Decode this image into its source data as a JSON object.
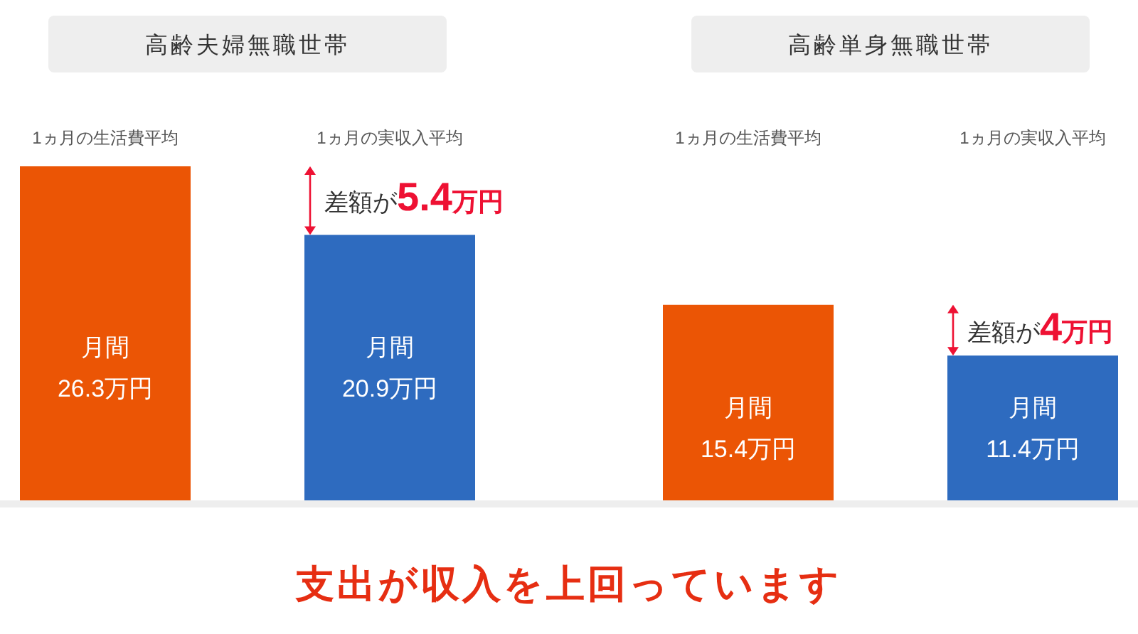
{
  "chart_data": [
    {
      "type": "bar",
      "title": "高齢夫婦無職世帯",
      "categories": [
        "1ヵ月の生活費平均",
        "1ヵ月の実収入平均"
      ],
      "values": [
        26.3,
        20.9
      ],
      "colors": [
        "#eb5505",
        "#2e6bbf"
      ],
      "tick_labels": "x",
      "value_labels": [
        "月間\n26.3万円",
        "月間\n20.9万円"
      ],
      "annotations": [
        {
          "text": "差額が**5.4万円**",
          "x": "1ヵ月の実収入平均",
          "y": 20.9
        }
      ]
    },
    {
      "type": "bar",
      "title": "高齢単身無職世帯",
      "categories": [
        "1ヵ月の生活費平均",
        "1ヵ月の実収入平均"
      ],
      "values": [
        15.4,
        11.4
      ],
      "colors": [
        "#eb5505",
        "#2e6bbf"
      ],
      "tick_labels": "x",
      "value_labels": [
        "月間\n15.4万円",
        "月間\n11.4万円"
      ],
      "annotations": [
        {
          "text": "差額が**4万円**",
          "x": "1ヵ月の実収入平均",
          "y": 11.4
        }
      ]
    },
    {
      "type": "other",
      "annotations": [
        "支出が収入を上回っています"
      ]
    }
  ]
}
